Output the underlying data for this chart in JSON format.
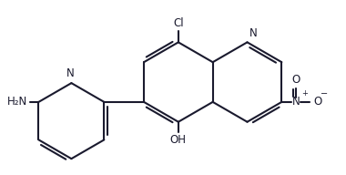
{
  "bg_color": "#ffffff",
  "line_color": "#1a1a2e",
  "line_width": 1.5,
  "font_size": 8.5,
  "figsize": [
    3.8,
    1.92
  ],
  "dpi": 100,
  "xlim": [
    0,
    9.5
  ],
  "ylim": [
    0,
    4.8
  ]
}
